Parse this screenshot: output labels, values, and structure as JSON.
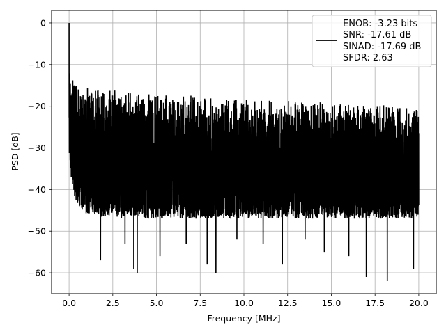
{
  "chart_data": {
    "type": "line",
    "title": "",
    "xlabel": "Frequency [MHz]",
    "ylabel": "PSD [dB]",
    "xlim": [
      -1,
      21
    ],
    "ylim": [
      -65,
      3
    ],
    "xticks": [
      0.0,
      2.5,
      5.0,
      7.5,
      10.0,
      12.5,
      15.0,
      17.5,
      20.0
    ],
    "xtick_labels": [
      "0.0",
      "2.5",
      "5.0",
      "7.5",
      "10.0",
      "12.5",
      "15.0",
      "17.5",
      "20.0"
    ],
    "yticks": [
      0,
      -10,
      -20,
      -30,
      -40,
      -50,
      -60
    ],
    "ytick_labels": [
      "0",
      "−10",
      "−20",
      "−30",
      "−40",
      "−50",
      "−60"
    ],
    "grid": true,
    "legend_placement": "top-right",
    "legend": {
      "lines": [
        "ENOB: -3.23 bits",
        "SNR: -17.61 dB",
        "SINAD: -17.69 dB",
        "SFDR: 2.63"
      ]
    },
    "series": [
      {
        "color": "#000000",
        "peak": {
          "x": 0.0,
          "y": 0
        },
        "envelope": {
          "x": [
            0.0,
            0.05,
            0.2,
            0.5,
            1.0,
            2.5,
            5.0,
            7.5,
            10.0,
            12.5,
            15.0,
            17.5,
            20.0
          ],
          "upper": [
            0,
            -8,
            -13,
            -15,
            -15,
            -16,
            -17,
            -17.5,
            -18,
            -18.5,
            -19,
            -19.5,
            -20
          ],
          "lower": [
            -30,
            -35,
            -40,
            -44,
            -46,
            -47,
            -47,
            -47,
            -47,
            -47,
            -47,
            -47,
            -47
          ]
        },
        "deep_dips": [
          {
            "x": 1.8,
            "y": -57
          },
          {
            "x": 3.2,
            "y": -53
          },
          {
            "x": 3.7,
            "y": -59
          },
          {
            "x": 3.9,
            "y": -60
          },
          {
            "x": 5.2,
            "y": -56
          },
          {
            "x": 6.7,
            "y": -53
          },
          {
            "x": 7.9,
            "y": -58
          },
          {
            "x": 8.4,
            "y": -60
          },
          {
            "x": 9.6,
            "y": -52
          },
          {
            "x": 11.1,
            "y": -53
          },
          {
            "x": 12.2,
            "y": -58
          },
          {
            "x": 13.5,
            "y": -52
          },
          {
            "x": 14.6,
            "y": -55
          },
          {
            "x": 16.0,
            "y": -56
          },
          {
            "x": 17.0,
            "y": -61
          },
          {
            "x": 18.2,
            "y": -62
          },
          {
            "x": 19.7,
            "y": -59
          }
        ]
      }
    ]
  }
}
